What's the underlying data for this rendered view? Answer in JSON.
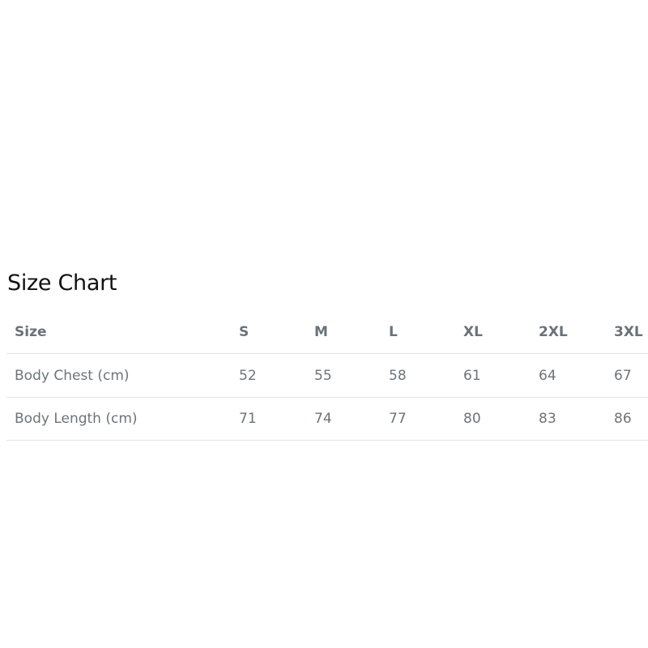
{
  "title": "Size Chart",
  "table": {
    "headers": [
      "Size",
      "S",
      "M",
      "L",
      "XL",
      "2XL",
      "3XL"
    ],
    "rows": [
      [
        "Body Chest (cm)",
        "52",
        "55",
        "58",
        "61",
        "64",
        "67"
      ],
      [
        "Body Length (cm)",
        "71",
        "74",
        "77",
        "80",
        "83",
        "86"
      ]
    ]
  }
}
